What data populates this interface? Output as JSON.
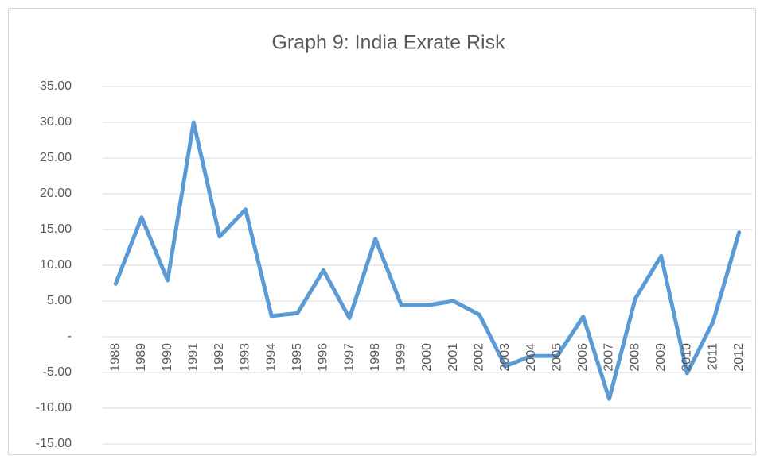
{
  "chart_data": {
    "type": "line",
    "title": "Graph 9: India Exrate Risk",
    "categories": [
      "1988",
      "1989",
      "1990",
      "1991",
      "1992",
      "1993",
      "1994",
      "1995",
      "1996",
      "1997",
      "1998",
      "1999",
      "2000",
      "2001",
      "2002",
      "2003",
      "2004",
      "2005",
      "2006",
      "2007",
      "2008",
      "2009",
      "2010",
      "2011",
      "2012"
    ],
    "series": [
      {
        "name": "India Exrate Risk",
        "color": "#5b9bd5",
        "values": [
          7.4,
          16.7,
          7.9,
          30.0,
          14.0,
          17.8,
          2.9,
          3.3,
          9.3,
          2.6,
          13.7,
          4.4,
          4.4,
          5.0,
          3.1,
          -4.1,
          -2.7,
          -2.7,
          2.8,
          -8.7,
          5.3,
          11.3,
          -5.1,
          2.1,
          14.6
        ]
      }
    ],
    "ylim": [
      -15,
      35
    ],
    "yticks": [
      {
        "value": -15,
        "label": "-15.00"
      },
      {
        "value": -10,
        "label": "-10.00"
      },
      {
        "value": -5,
        "label": "-5.00"
      },
      {
        "value": 0,
        "label": "-"
      },
      {
        "value": 5,
        "label": "5.00"
      },
      {
        "value": 10,
        "label": "10.00"
      },
      {
        "value": 15,
        "label": "15.00"
      },
      {
        "value": 20,
        "label": "20.00"
      },
      {
        "value": 25,
        "label": "25.00"
      },
      {
        "value": 30,
        "label": "30.00"
      },
      {
        "value": 35,
        "label": "35.00"
      }
    ],
    "grid": true
  }
}
